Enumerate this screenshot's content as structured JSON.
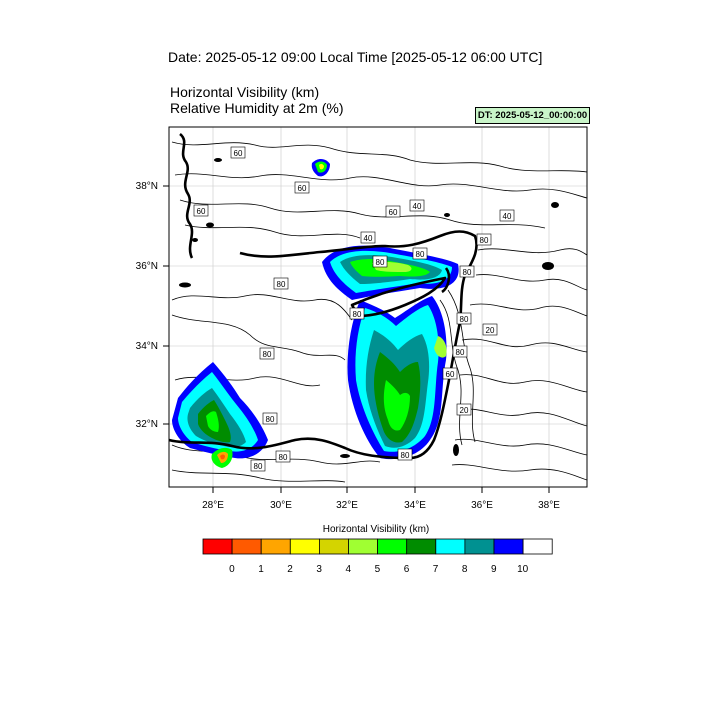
{
  "header": {
    "date_title": "Date: 2025-05-12  09:00 Local Time [2025-05-12  06:00 UTC]",
    "var_line1": "Horizontal Visibility   (km)",
    "var_line2": "Relative Humidity at 2m   (%)",
    "dt_badge": "DT: 2025-05-12_00:00:00"
  },
  "map": {
    "lat_labels": [
      "38°N",
      "36°N",
      "34°N",
      "32°N"
    ],
    "lon_labels": [
      "28°E",
      "30°E",
      "32°E",
      "34°E",
      "36°E",
      "38°E"
    ],
    "contour_labels": [
      "60",
      "60",
      "80",
      "60",
      "40",
      "40",
      "40",
      "80",
      "80",
      "80",
      "80",
      "80",
      "80",
      "80",
      "80",
      "60",
      "20",
      "80",
      "20",
      "60",
      "80",
      "80",
      "80"
    ]
  },
  "colorbar": {
    "title": "Horizontal Visibility  (km)",
    "colors": [
      "#ff0000",
      "#ff5a00",
      "#ffa500",
      "#ffff00",
      "#d4d400",
      "#a0ff32",
      "#00ff00",
      "#008c00",
      "#00ffff",
      "#009191",
      "#0000ff",
      "#ffffff"
    ],
    "labels": [
      "0",
      "1",
      "2",
      "3",
      "4",
      "5",
      "6",
      "7",
      "8",
      "9",
      "10"
    ]
  }
}
